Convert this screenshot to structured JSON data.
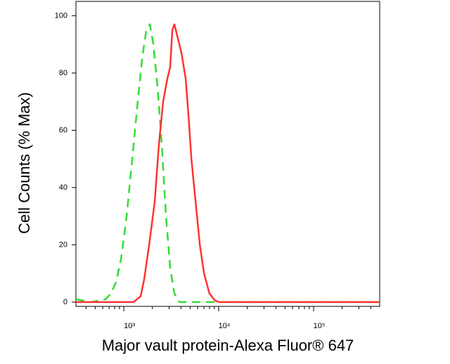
{
  "chart_data": {
    "type": "line",
    "x_label": "Major vault protein-Alexa Fluor® 647",
    "y_label": "Cell Counts (% Max)",
    "xscale": "log",
    "xlim": [
      313,
      497000
    ],
    "ylim": [
      -1.5,
      105
    ],
    "xticks": [
      {
        "value": 1000,
        "label": "10³"
      },
      {
        "value": 10000,
        "label": "10⁴"
      },
      {
        "value": 100000,
        "label": "10⁵"
      }
    ],
    "minor_xticks": [
      400,
      500,
      600,
      700,
      800,
      900,
      2000,
      3000,
      4000,
      5000,
      6000,
      7000,
      8000,
      9000,
      20000,
      30000,
      40000,
      50000,
      60000,
      70000,
      80000,
      90000,
      200000,
      300000,
      400000
    ],
    "yticks": [
      0,
      20,
      40,
      60,
      80,
      100
    ],
    "series": [
      {
        "color": "#33dd33",
        "line_style": "dashed",
        "x": [
          313,
          456,
          641,
          735,
          829,
          934,
          1070,
          1228,
          1383,
          1558,
          1727,
          1880,
          2047,
          2267,
          2512,
          2783,
          3081,
          3413,
          3848,
          4966,
          497000
        ],
        "values": [
          1,
          0,
          1,
          3,
          7,
          15,
          30,
          50,
          68,
          85,
          95,
          97,
          90,
          75,
          55,
          30,
          12,
          3,
          0,
          0,
          0
        ]
      },
      {
        "color": "#ff3333",
        "line_style": "solid",
        "x": [
          313,
          1269,
          1505,
          1640,
          1848,
          2117,
          2344,
          2595,
          2874,
          3081,
          3247,
          3413,
          3656,
          4053,
          4488,
          4809,
          5152,
          5709,
          6322,
          7003,
          7993,
          9152,
          10185,
          497000
        ],
        "values": [
          0,
          0,
          2,
          8,
          20,
          35,
          55,
          70,
          78,
          82,
          95,
          97,
          93,
          87,
          78,
          65,
          50,
          35,
          20,
          10,
          3,
          0.5,
          0,
          0
        ]
      }
    ]
  }
}
